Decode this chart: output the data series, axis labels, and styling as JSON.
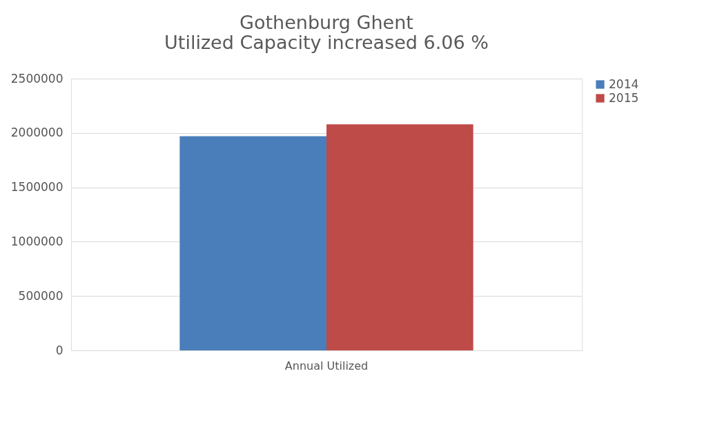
{
  "chart_data": {
    "type": "bar",
    "title": [
      "Gothenburg Ghent",
      "Utilized Capacity increased 6.06  %"
    ],
    "categories": [
      "Annual Utilized"
    ],
    "series": [
      {
        "name": "2014",
        "color": "#4a7ebb",
        "values": [
          1970000
        ]
      },
      {
        "name": "2015",
        "color": "#be4b48",
        "values": [
          2080000
        ]
      }
    ],
    "ylim": [
      0,
      2500000
    ],
    "yticks": [
      0,
      500000,
      1000000,
      1500000,
      2000000,
      2500000
    ],
    "grid": "y",
    "legend": "right"
  }
}
